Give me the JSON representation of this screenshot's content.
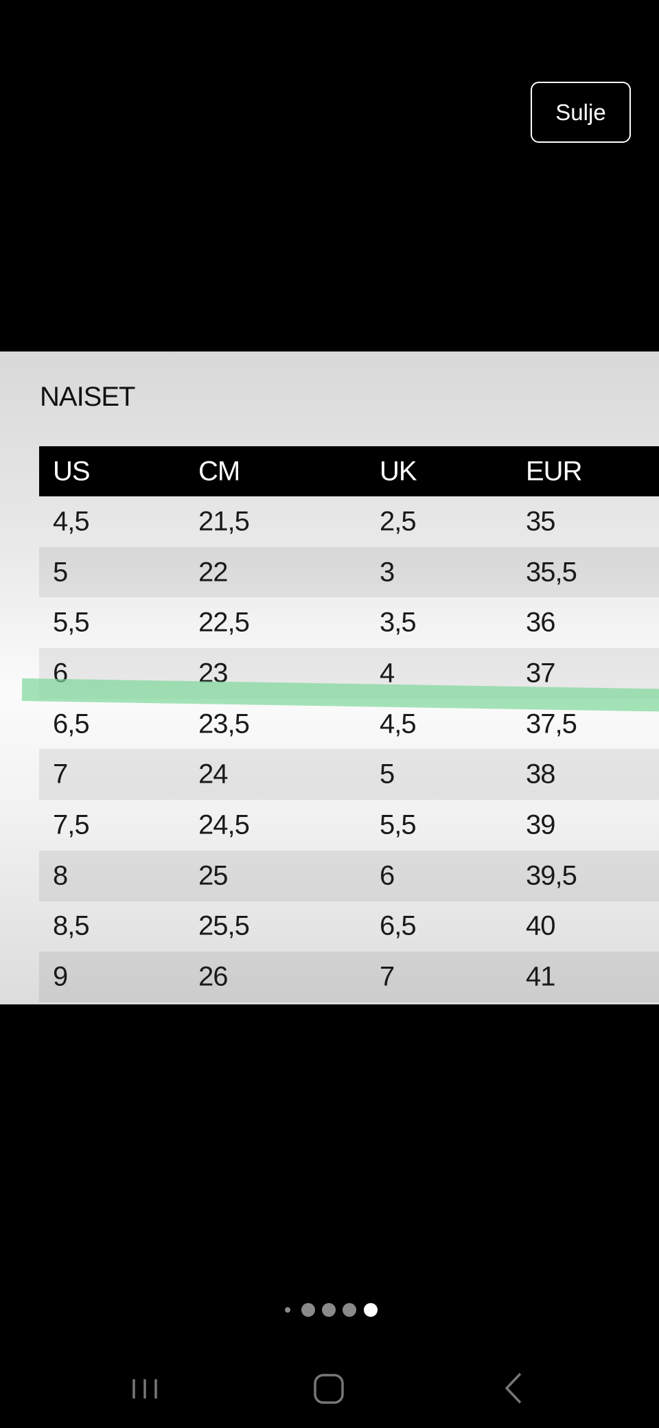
{
  "close_button": {
    "label": "Sulje"
  },
  "size_chart": {
    "title": "NAISET",
    "headers": [
      "US",
      "CM",
      "UK",
      "EUR"
    ],
    "rows": [
      [
        "4,5",
        "21,5",
        "2,5",
        "35"
      ],
      [
        "5",
        "22",
        "3",
        "35,5"
      ],
      [
        "5,5",
        "22,5",
        "3,5",
        "36"
      ],
      [
        "6",
        "23",
        "4",
        "37"
      ],
      [
        "6,5",
        "23,5",
        "4,5",
        "37,5"
      ],
      [
        "7",
        "24",
        "5",
        "38"
      ],
      [
        "7,5",
        "24,5",
        "5,5",
        "39"
      ],
      [
        "8",
        "25",
        "6",
        "39,5"
      ],
      [
        "8,5",
        "25,5",
        "6,5",
        "40"
      ],
      [
        "9",
        "26",
        "7",
        "41"
      ]
    ],
    "highlight_color": "#7dd79a"
  },
  "pager": {
    "count": 5,
    "active_index": 4
  },
  "nav_bar": {
    "icons": [
      "recent-apps-icon",
      "home-icon",
      "back-icon"
    ]
  }
}
